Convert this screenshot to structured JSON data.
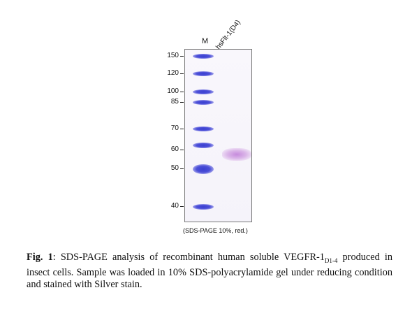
{
  "gel": {
    "marker_lane_label": "M",
    "sample_lane_label": "hsFlt-1(D4)",
    "mw_markers": [
      "150",
      "120",
      "100",
      "85",
      "70",
      "60",
      "50",
      "40"
    ],
    "ladder_band_color": "#3a3fd0",
    "sample_band_color": "#c07ad6",
    "note": "(SDS-PAGE 10%, red.)"
  },
  "caption": {
    "label": "Fig. 1",
    "text_before_subscript": ": SDS-PAGE analysis of recombinant human soluble VEGFR-1",
    "subscript": "D1-4",
    "text_after_subscript": " produced in insect cells. Sample was loaded in 10% SDS-polyacrylamide gel under reducing condition and stained with Silver stain."
  }
}
